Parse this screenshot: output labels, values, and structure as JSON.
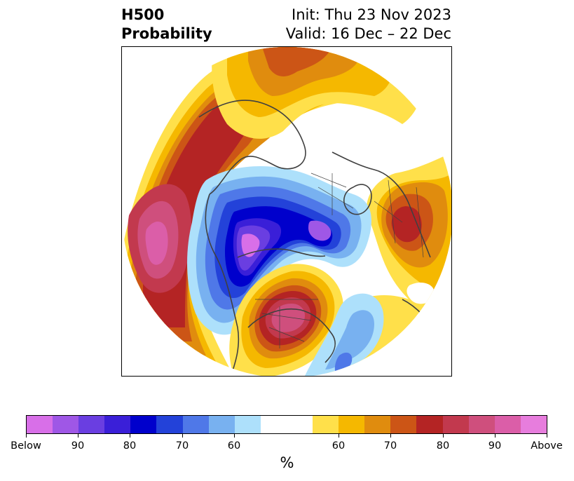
{
  "title": {
    "left_line1": "H500",
    "left_line2": "Probability",
    "right_line1": "Init: Thu 23 Nov 2023",
    "right_line2": "Valid: 16 Dec – 22 Dec"
  },
  "map": {
    "projection": "north-polar-stereographic",
    "below_normal_colors": [
      "#d86fe8",
      "#9f57e6",
      "#6a3ee1",
      "#3a1fd8",
      "#0000cc",
      "#2342d9",
      "#4f78e8",
      "#78b1f0",
      "#ade0fb"
    ],
    "neutral_color": "#ffffff",
    "above_normal_colors": [
      "#ffe04a",
      "#f5b800",
      "#e08c0e",
      "#cc5516",
      "#b42424",
      "#c2394e",
      "#cf4f7d",
      "#db5ea8",
      "#e77ddd"
    ]
  },
  "colorbar": {
    "tick_labels": [
      "Below",
      "90",
      "80",
      "70",
      "60",
      "60",
      "70",
      "80",
      "90",
      "Above"
    ],
    "unit_label": "%"
  }
}
